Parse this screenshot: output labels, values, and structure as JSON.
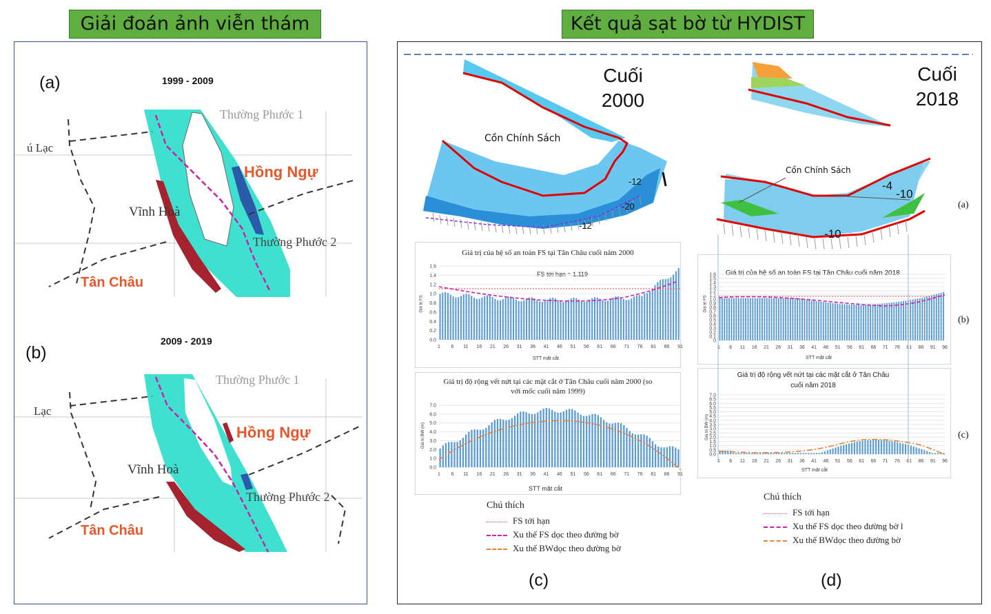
{
  "left_banner": "Giải đoán ảnh viễn thám",
  "right_banner": "Kết quả sạt bờ từ HYDIST",
  "panel_a": {
    "label": "(a)",
    "period": "1999 - 2009",
    "places": [
      "Thường Phước 1",
      "ú Lạc",
      "Hồng Ngự",
      "Vĩnh Hoà",
      "Thường Phước 2",
      "Tân Châu"
    ]
  },
  "panel_b": {
    "label": "(b)",
    "period": "2009 - 2019",
    "places": [
      "Thường Phước 1",
      "Lạc",
      "Hồng Ngự",
      "Vĩnh Hoà",
      "Thường Phước 2",
      "Tân Châu"
    ]
  },
  "col_c": {
    "map_title_line1": "Cuối",
    "map_title_line2": "2000",
    "island": "Cồn Chính Sách",
    "depths": [
      "-12",
      "-20",
      "-12"
    ],
    "fs_chart": {
      "title": "Giá trị của hệ số an toàn FS tại Tân Châu cuối năm 2000",
      "annotation": "FS tới hạn = 1.119",
      "ylabel": "Giá trị FS",
      "xlabel": "STT mặt cắt",
      "yticks": [
        "0.0",
        "0.2",
        "0.4",
        "0.6",
        "0.8",
        "1.0",
        "1.2",
        "1.4",
        "1.6"
      ],
      "xticks": [
        "1",
        "6",
        "11",
        "16",
        "21",
        "26",
        "31",
        "36",
        "41",
        "46",
        "51",
        "56",
        "61",
        "66",
        "71",
        "76",
        "81",
        "86",
        "91"
      ]
    },
    "bw_chart": {
      "title_line1": "Giá trị độ rộng vết nứt tại các mặt cắt ở Tân Châu cuối năm 2000 (so",
      "title_line2": "với mốc cuối năm 1999)",
      "ylabel": "Giá trị BW (m)",
      "xlabel": "STT mặt cắt",
      "yticks": [
        "0.0",
        "1.0",
        "2.0",
        "3.0",
        "4.0",
        "5.0",
        "6.0",
        "7.0"
      ],
      "xticks": [
        "1",
        "6",
        "11",
        "16",
        "21",
        "26",
        "31",
        "36",
        "41",
        "46",
        "51",
        "56",
        "61",
        "66",
        "71",
        "76",
        "81",
        "86",
        "91"
      ]
    },
    "legend": {
      "title": "Chú thích",
      "items": [
        "FS tới hạn",
        "Xu thế FS dọc theo đường bờ",
        "Xu thế BWdọc theo đường bờ"
      ]
    },
    "caption": "(c)"
  },
  "col_d": {
    "map_title_line1": "Cuối",
    "map_title_line2": "2018",
    "island": "Cồn Chính Sách",
    "depths": [
      "-4",
      "-10",
      "-10"
    ],
    "fs_chart": {
      "title": "Giá trị của hệ số an toàn FS tại Tân Châu cuối năm 2018",
      "ylabel": "Giá trị FS",
      "xlabel": "STT mặt cắt",
      "yticks": [
        "0",
        "0.1",
        "0.2",
        "0.3",
        "0.4",
        "0.5",
        "0.6",
        "0.7",
        "0.8",
        "0.9",
        "1.0",
        "1.1",
        "1.2",
        "1.3",
        "1.4",
        "1.5",
        "1.6"
      ],
      "xticks": [
        "1",
        "6",
        "11",
        "16",
        "21",
        "26",
        "31",
        "36",
        "41",
        "46",
        "51",
        "56",
        "61",
        "66",
        "71",
        "76",
        "81",
        "86",
        "91",
        "96"
      ]
    },
    "bw_chart": {
      "title_line1": "Giá trị độ rộng vết nứt tại các mặt cắt ở Tân Châu",
      "title_line2": "cuối năm 2018",
      "ylabel": "Giá trị BW (m)",
      "xlabel": "STT mặt cắt",
      "yticks": [
        "0.0",
        "0.5",
        "1.0",
        "1.5",
        "2.0",
        "2.5",
        "3.0",
        "3.5",
        "4.0",
        "4.5",
        "5.0",
        "5.5",
        "6.0",
        "6.5",
        "7.0"
      ],
      "xticks": [
        "1",
        "6",
        "11",
        "16",
        "21",
        "26",
        "31",
        "36",
        "41",
        "46",
        "51",
        "56",
        "61",
        "66",
        "71",
        "76",
        "81",
        "86",
        "91",
        "96"
      ]
    },
    "side_labels": [
      "(a)",
      "(b)",
      "(c)"
    ],
    "legend": {
      "title": "Chú thích",
      "items": [
        "FS tới hạn",
        "Xu thế FS dọc theo đường bờ l",
        "Xu thế BWdọc theo đường bờ"
      ]
    },
    "caption": "(d)"
  },
  "colors": {
    "banner": "#5fae3f",
    "river": "#40e0d0",
    "erosion_red": "#a5222f",
    "erosion_blue": "#2b5aa8",
    "bar_blue": "#5b9bd5",
    "fs_trend": "#cc1fa8",
    "bw_trend": "#ed7d31",
    "fs_limit": "#ff5b5b",
    "bank_line": "#e00000"
  }
}
